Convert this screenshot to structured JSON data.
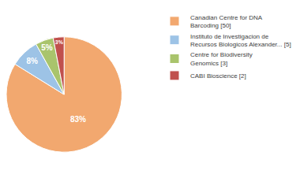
{
  "chart_data": {
    "type": "pie",
    "categories": [
      "Canadian Centre for DNA\nBarcoding [50]",
      "Instituto de Investigacion de\nRecursos Biologicos Alexander... [5]",
      "Centre for Biodiversity\nGenomics [3]",
      "CABI Bioscience [2]"
    ],
    "values": [
      83,
      8,
      5,
      3
    ],
    "value_labels": [
      "83%",
      "8%",
      "5%",
      "3%"
    ],
    "colors": [
      "#F2A86F",
      "#9DC3E6",
      "#A9C46C",
      "#C0504D"
    ],
    "data_labels": true,
    "legend": "upper right"
  }
}
